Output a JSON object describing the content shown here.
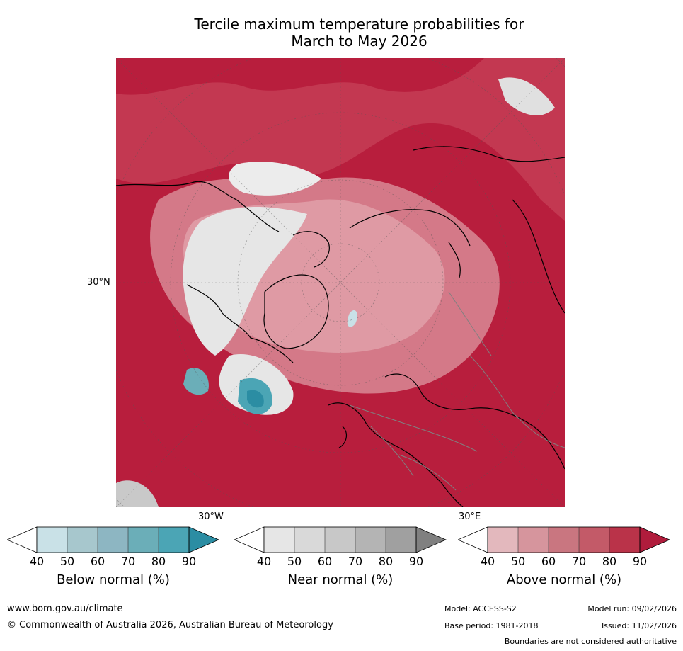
{
  "title_line1": "Tercile maximum temperature probabilities for",
  "title_line2": "March to May 2026",
  "map": {
    "projection": "North polar stereographic",
    "lat_label": "30°N",
    "lon_label_west": "30°W",
    "lon_label_east": "30°E"
  },
  "colorbars": [
    {
      "label": "Below normal (%)",
      "ticks": [
        "40",
        "50",
        "60",
        "70",
        "80",
        "90"
      ],
      "colors": [
        "#ffffff",
        "#c9e1e7",
        "#a7c7cd",
        "#8db6c2",
        "#6baeb8",
        "#4ba5b5",
        "#2b8da3"
      ]
    },
    {
      "label": "Near normal (%)",
      "ticks": [
        "40",
        "50",
        "60",
        "70",
        "80",
        "90"
      ],
      "colors": [
        "#ffffff",
        "#e6e6e6",
        "#d9d9d9",
        "#c8c8c8",
        "#b4b4b4",
        "#a0a0a0",
        "#808080"
      ]
    },
    {
      "label": "Above normal (%)",
      "ticks": [
        "40",
        "50",
        "60",
        "70",
        "80",
        "90"
      ],
      "colors": [
        "#ffffff",
        "#e3b8bd",
        "#d6959d",
        "#c97680",
        "#c35a68",
        "#ba3349",
        "#b01c3c"
      ]
    }
  ],
  "footer": {
    "url": "www.bom.gov.au/climate",
    "copyright": "© Commonwealth of Australia 2026, Australian Bureau of Meteorology",
    "model": "Model: ACCESS-S2",
    "model_run": "Model run: 09/02/2026",
    "base_period": "Base period: 1981-2018",
    "issued": "Issued: 11/02/2026",
    "disclaimer": "Boundaries are not considered authoritative"
  }
}
